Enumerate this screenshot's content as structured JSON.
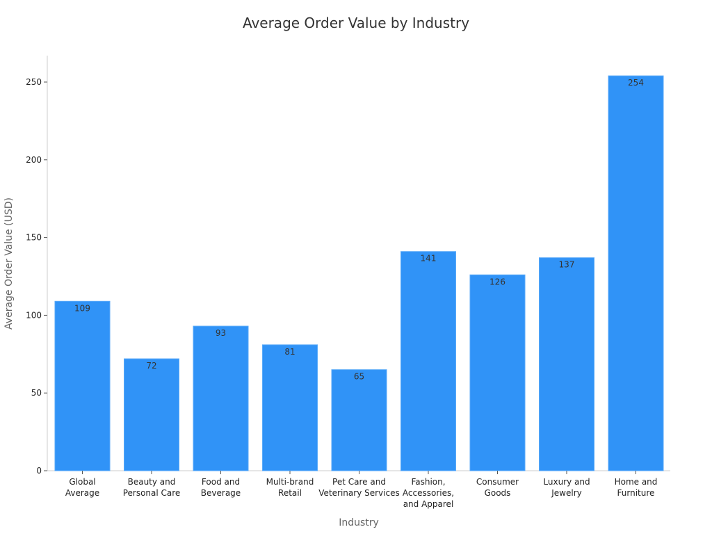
{
  "chart_data": {
    "type": "bar",
    "title": "Average Order Value by Industry",
    "xlabel": "Industry",
    "ylabel": "Average Order Value (USD)",
    "categories": [
      [
        "Global",
        "Average"
      ],
      [
        "Beauty and",
        "Personal Care"
      ],
      [
        "Food and",
        "Beverage"
      ],
      [
        "Multi-brand",
        "Retail"
      ],
      [
        "Pet Care and",
        "Veterinary Services"
      ],
      [
        "Fashion,",
        "Accessories,",
        "and Apparel"
      ],
      [
        "Consumer",
        "Goods"
      ],
      [
        "Luxury and",
        "Jewelry"
      ],
      [
        "Home and",
        "Furniture"
      ]
    ],
    "values": [
      109,
      72,
      93,
      81,
      65,
      141,
      126,
      137,
      254
    ],
    "ylim": [
      0,
      267
    ],
    "yticks": [
      0,
      50,
      100,
      150,
      200,
      250
    ],
    "grid": false,
    "legend": "none",
    "bar_color": "#3093f7",
    "bar_edge_color": "#5aaaf8"
  }
}
